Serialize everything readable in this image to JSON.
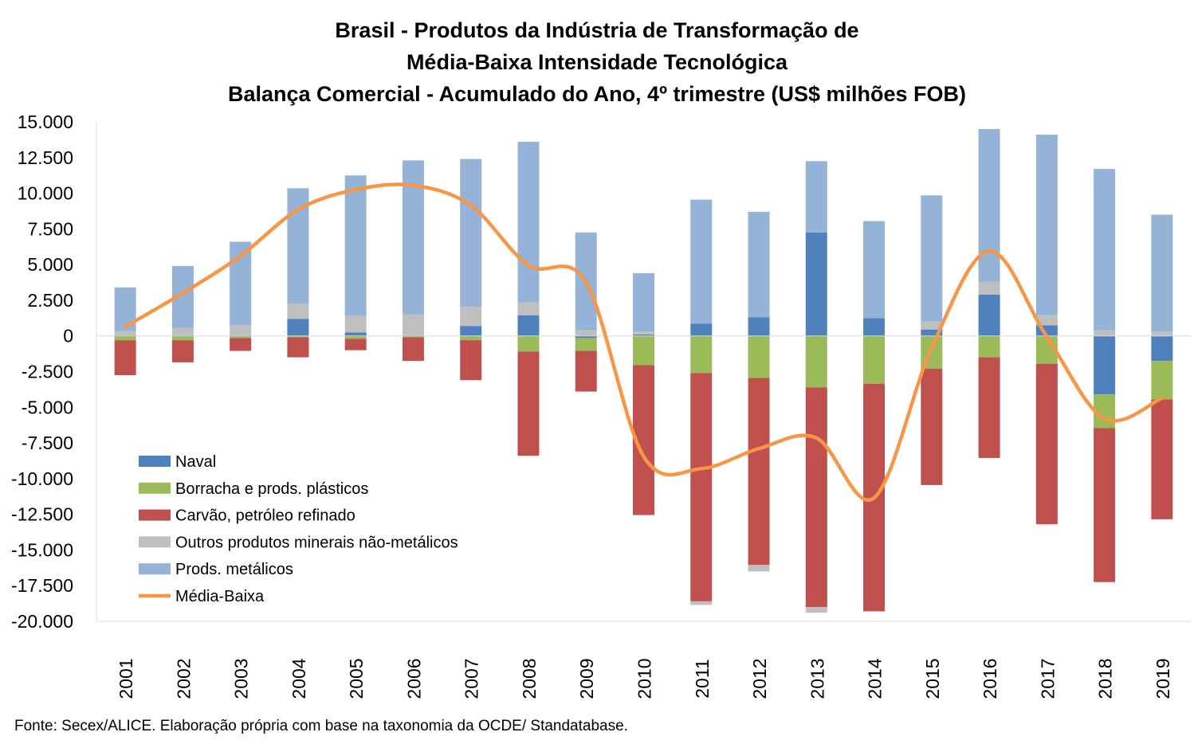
{
  "chart_data": {
    "type": "bar",
    "stacked": true,
    "title_lines": [
      "Brasil - Produtos da Indústria de Transformação de",
      "Média-Baixa Intensidade Tecnológica",
      "Balança Comercial - Acumulado do Ano, 4º trimestre (US$ milhões FOB)"
    ],
    "source": "Fonte: Secex/ALICE. Elaboração própria com base na taxonomia da OCDE/ Standatabase.",
    "categories": [
      "2001",
      "2002",
      "2003",
      "2004",
      "2005",
      "2006",
      "2007",
      "2008",
      "2009",
      "2010",
      "2011",
      "2012",
      "2013",
      "2014",
      "2015",
      "2016",
      "2017",
      "2018",
      "2019"
    ],
    "ylim": [
      -20000,
      15000
    ],
    "yticks": [
      15000,
      12500,
      10000,
      7500,
      5000,
      2500,
      0,
      -2500,
      -5000,
      -7500,
      -10000,
      -12500,
      -15000,
      -17500,
      -20000
    ],
    "ytick_labels": [
      "15.000",
      "12.500",
      "10.000",
      "7.500",
      "5.000",
      "2.500",
      "0",
      "-2.500",
      "-5.000",
      "-7.500",
      "-10.000",
      "-12.500",
      "-15.000",
      "-17.500",
      "-20.000"
    ],
    "grid": false,
    "legend_position": "bottom-left",
    "series": [
      {
        "name": "Naval",
        "color": "#4f81bd",
        "values": [
          50,
          50,
          50,
          1200,
          250,
          50,
          700,
          1450,
          -150,
          100,
          850,
          1300,
          7250,
          1250,
          450,
          2900,
          750,
          -4100,
          -1750
        ]
      },
      {
        "name": "Borracha e prods. plásticos",
        "color": "#9bbb59",
        "values": [
          -300,
          -300,
          -150,
          -100,
          -200,
          -100,
          -300,
          -1100,
          -900,
          -2050,
          -2600,
          -2950,
          -3600,
          -3350,
          -2300,
          -1500,
          -1950,
          -2350,
          -2700
        ]
      },
      {
        "name": "Carvão, petróleo refinado",
        "color": "#c0504d",
        "values": [
          -2450,
          -1550,
          -900,
          -1400,
          -800,
          -1650,
          -2800,
          -7300,
          -2850,
          -10500,
          -16000,
          -13100,
          -15400,
          -15950,
          -8150,
          -7050,
          -11250,
          -10800,
          -8400
        ]
      },
      {
        "name": "Outros produtos minerais não-metálicos",
        "color": "#bfbfbf",
        "values": [
          300,
          500,
          700,
          1050,
          1150,
          1450,
          1350,
          900,
          400,
          200,
          -250,
          -450,
          -400,
          0,
          550,
          900,
          700,
          400,
          300
        ]
      },
      {
        "name": "Prods. metálicos",
        "color": "#95b3d7",
        "values": [
          3050,
          4350,
          5850,
          8100,
          9850,
          10800,
          10350,
          11250,
          6850,
          4100,
          8700,
          7400,
          5000,
          6800,
          8850,
          10700,
          12650,
          11300,
          8200
        ]
      },
      {
        "name": "Média-Baixa",
        "color": "#f79646",
        "type": "line",
        "values": [
          650,
          3000,
          5600,
          8850,
          10250,
          10550,
          9150,
          4950,
          3750,
          -8450,
          -9300,
          -7900,
          -7150,
          -11350,
          -850,
          5950,
          -50,
          -5800,
          -4350
        ]
      }
    ]
  }
}
